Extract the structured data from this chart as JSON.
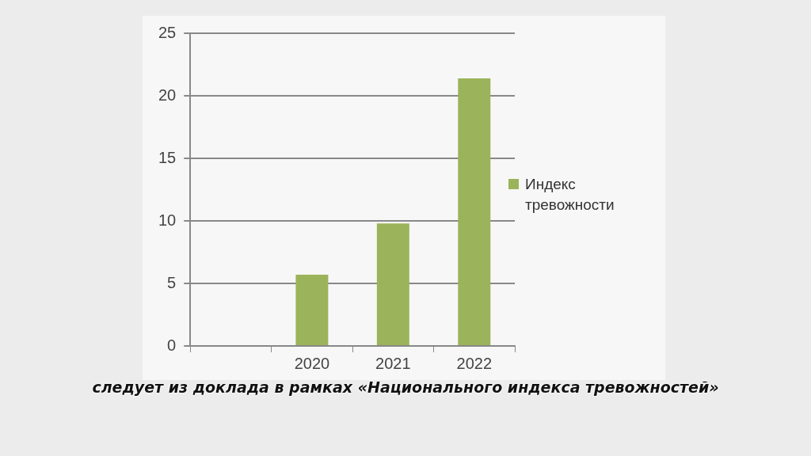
{
  "chart_data": {
    "type": "bar",
    "categories": [
      null,
      "2020",
      "2021",
      "2022"
    ],
    "series": [
      {
        "name": "Индекс тревожности",
        "color": "#9bb35a",
        "values": [
          null,
          5.7,
          9.8,
          21.4
        ]
      }
    ],
    "ylim": [
      0,
      25
    ],
    "yticks": [
      0,
      5,
      10,
      15,
      20,
      25
    ],
    "grid": "y",
    "legend": "right",
    "annotations": [
      "следует из доклада в рамках «Национального индекса тревожностей»"
    ]
  }
}
